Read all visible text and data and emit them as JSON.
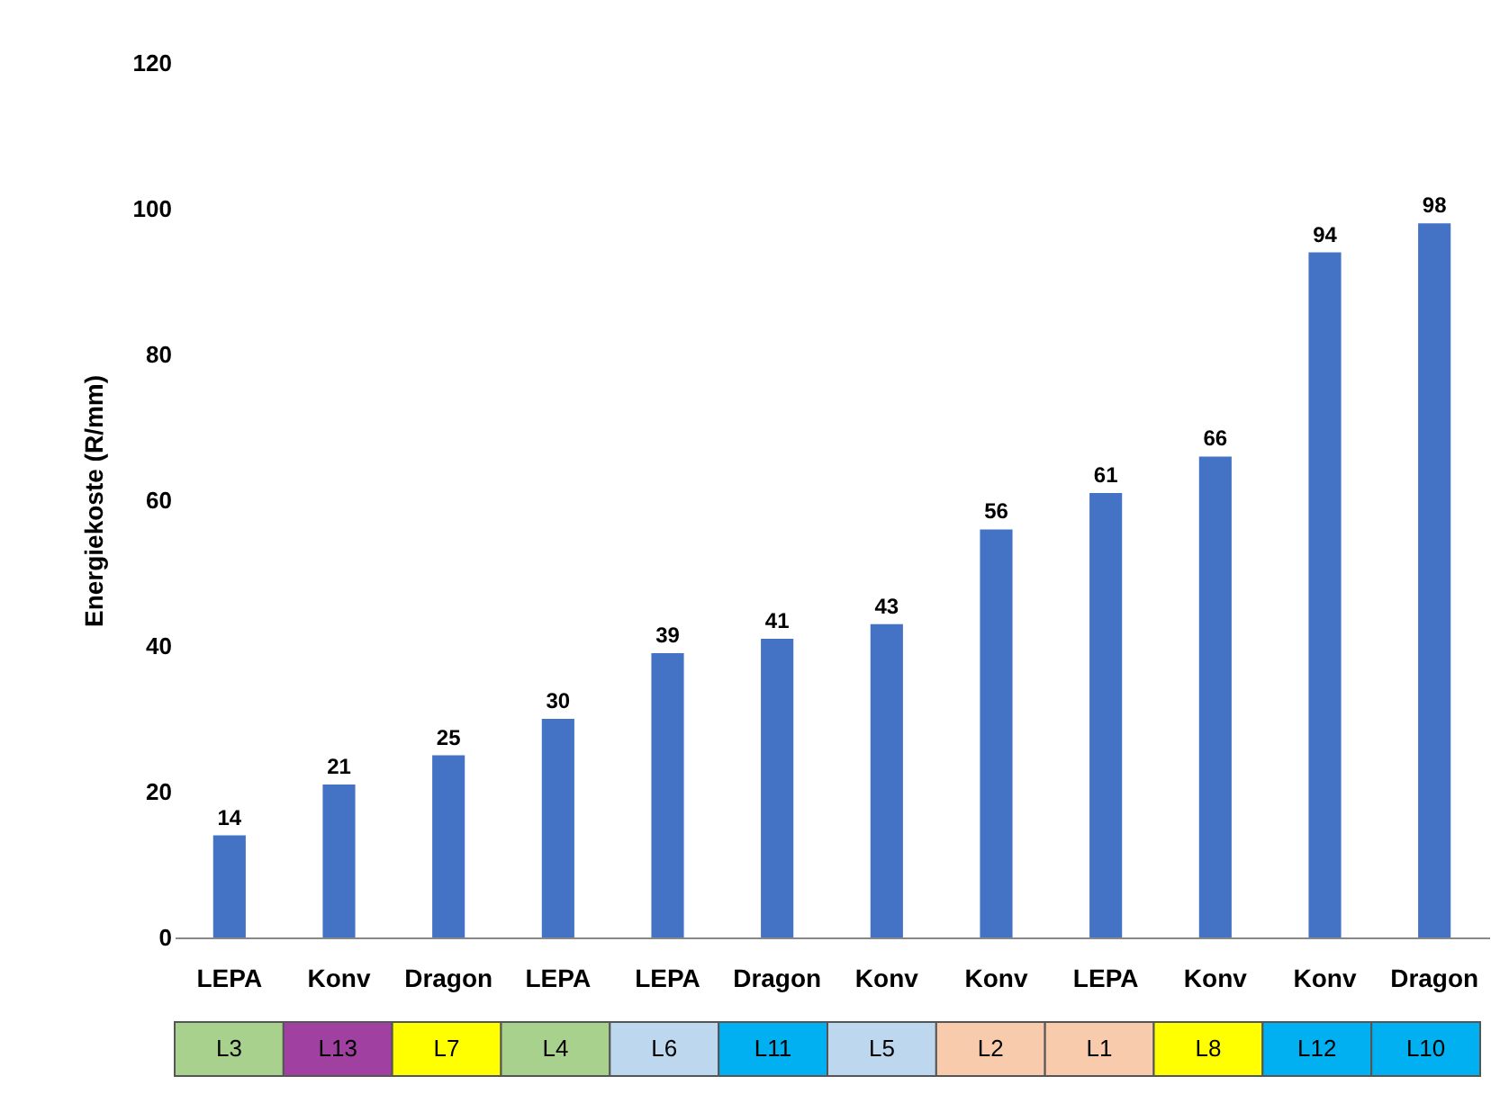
{
  "chart_data": [
    {
      "type": "bar",
      "ylabel": "Energiekoste (R/mm)",
      "categories": [
        "LEPA",
        "Konv",
        "Dragon",
        "LEPA",
        "LEPA",
        "Dragon",
        "Konv",
        "Konv",
        "LEPA",
        "Konv",
        "Konv",
        "Dragon"
      ],
      "values": [
        14,
        21,
        25,
        30,
        39,
        41,
        43,
        56,
        61,
        66,
        94,
        98
      ],
      "color": "#4472c4",
      "ylim": [
        0,
        120
      ],
      "yticks": [
        0,
        20,
        40,
        60,
        80,
        100,
        120
      ],
      "data_labels": true
    },
    {
      "type": "other",
      "categories": [
        "L3",
        "L13",
        "L7",
        "L4",
        "L6",
        "L11",
        "L5",
        "L2",
        "L1",
        "L8",
        "L12",
        "L10"
      ],
      "colors": [
        "#a9d18e",
        "#a040a0",
        "#ffff00",
        "#a9d18e",
        "#bdd7ee",
        "#00b0f0",
        "#bdd7ee",
        "#f8cbad",
        "#f8cbad",
        "#ffff00",
        "#00b0f0",
        "#00b0f0"
      ]
    }
  ]
}
